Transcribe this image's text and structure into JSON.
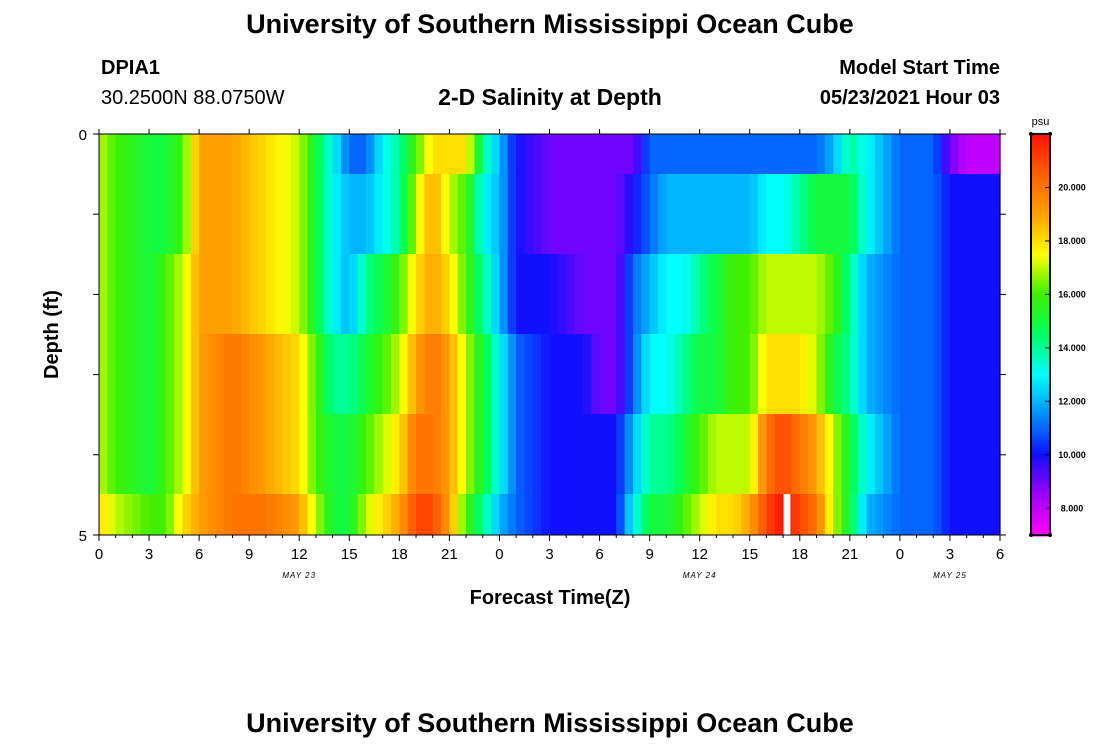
{
  "header": {
    "title": "University of Southern Mississippi Ocean Cube",
    "station_id": "DPIA1",
    "coords": "30.2500N  88.0750W",
    "subtitle": "2-D Salinity at Depth",
    "model_label": "Model Start Time",
    "model_time": "05/23/2021 Hour 03"
  },
  "footer": {
    "title": "University of Southern Mississippi Ocean Cube"
  },
  "chart_data": {
    "type": "heatmap",
    "title": "2-D Salinity at Depth",
    "xlabel": "Forecast Time(Z)",
    "ylabel": "Depth (ft)",
    "x_ticks": [
      "0",
      "3",
      "6",
      "9",
      "12",
      "15",
      "18",
      "21",
      "0",
      "3",
      "6",
      "9",
      "12",
      "15",
      "18",
      "21",
      "0",
      "3",
      "6"
    ],
    "date_labels": [
      {
        "text": "MAY 23",
        "tick_index": 4
      },
      {
        "text": "MAY 24",
        "tick_index": 12
      },
      {
        "text": "MAY 25",
        "tick_index": 17
      }
    ],
    "xlim": [
      0,
      54
    ],
    "ylim": [
      0,
      5
    ],
    "y_ticks": [
      "0",
      "5"
    ],
    "depth_layers": [
      0,
      1,
      2,
      3,
      4
    ],
    "units": "psu",
    "colorbar": {
      "min": 7,
      "max": 22,
      "tick_values": [
        8,
        10,
        12,
        14,
        16,
        18,
        20
      ],
      "tick_labels": [
        "8.000",
        "10.000",
        "12.000",
        "14.000",
        "16.000",
        "18.000",
        "20.000"
      ],
      "colors": [
        "#ff00ff",
        "#a000ff",
        "#1010ff",
        "#0090ff",
        "#00ffff",
        "#00ff60",
        "#40f000",
        "#ffff00",
        "#ffa000",
        "#ff6000",
        "#ff1000"
      ]
    },
    "keyframes_hours": [
      0,
      1,
      3,
      4,
      5,
      6,
      8,
      10,
      12,
      13,
      14,
      15,
      16,
      17,
      18,
      19,
      20,
      21,
      22,
      23,
      24,
      25,
      27,
      29,
      30,
      31,
      32,
      33,
      34,
      35,
      36,
      37,
      38,
      39,
      40,
      41,
      42,
      43,
      44,
      45,
      46,
      48,
      50,
      51,
      52,
      54
    ],
    "values": [
      [
        17,
        16,
        15,
        15,
        16,
        19,
        19,
        18,
        17,
        15,
        13,
        11,
        11,
        13,
        14,
        16,
        18,
        18,
        18,
        14,
        12,
        10,
        9,
        9,
        9,
        9,
        9,
        11,
        11,
        11,
        11,
        11,
        11,
        11,
        11,
        11,
        11,
        11,
        12,
        14,
        13,
        11,
        11,
        9,
        8,
        8
      ],
      [
        17,
        16,
        15,
        15,
        16,
        19,
        19,
        18,
        17,
        15,
        13,
        12,
        12,
        13,
        14,
        17,
        19,
        17,
        16,
        13,
        12,
        10,
        9,
        9,
        9,
        9,
        10,
        11,
        12,
        12,
        12,
        12,
        12,
        12,
        13,
        13,
        14,
        15,
        15,
        15,
        13,
        11,
        11,
        10,
        10,
        10
      ],
      [
        17,
        16,
        15,
        16,
        17,
        19,
        19,
        18,
        17,
        15,
        13,
        12,
        14,
        15,
        16,
        18,
        19,
        18,
        16,
        14,
        12,
        10,
        10,
        9,
        9,
        9,
        11,
        12,
        13,
        13,
        14,
        15,
        16,
        16,
        17,
        17,
        17,
        17,
        16,
        14,
        12,
        11,
        11,
        10,
        10,
        10
      ],
      [
        17,
        16,
        15,
        16,
        17,
        19,
        20,
        19,
        18,
        16,
        14,
        14,
        15,
        16,
        17,
        19,
        20,
        19,
        17,
        15,
        13,
        11,
        10,
        10,
        9,
        9,
        11,
        13,
        13,
        14,
        15,
        15,
        16,
        16,
        18,
        18,
        18,
        17,
        15,
        14,
        12,
        11,
        11,
        10,
        10,
        10
      ],
      [
        17,
        16,
        15,
        16,
        17,
        19,
        20,
        19,
        18,
        16,
        15,
        15,
        16,
        17,
        18,
        20,
        20,
        19,
        17,
        15,
        13,
        11,
        10,
        10,
        10,
        10,
        12,
        14,
        14,
        15,
        16,
        17,
        17,
        17,
        20,
        21,
        20,
        19,
        17,
        15,
        13,
        11,
        11,
        10,
        10,
        10
      ],
      [
        18,
        17,
        16,
        16,
        18,
        19,
        20,
        20,
        19,
        17,
        15,
        15,
        17,
        18,
        19,
        21,
        21,
        19,
        16,
        14,
        12,
        11,
        10,
        10,
        10,
        10,
        13,
        15,
        15,
        16,
        17,
        18,
        18,
        19,
        21,
        22,
        21,
        20,
        17,
        15,
        12,
        11,
        11,
        10,
        10,
        10
      ]
    ],
    "no_data_hours": [
      41.2
    ]
  }
}
